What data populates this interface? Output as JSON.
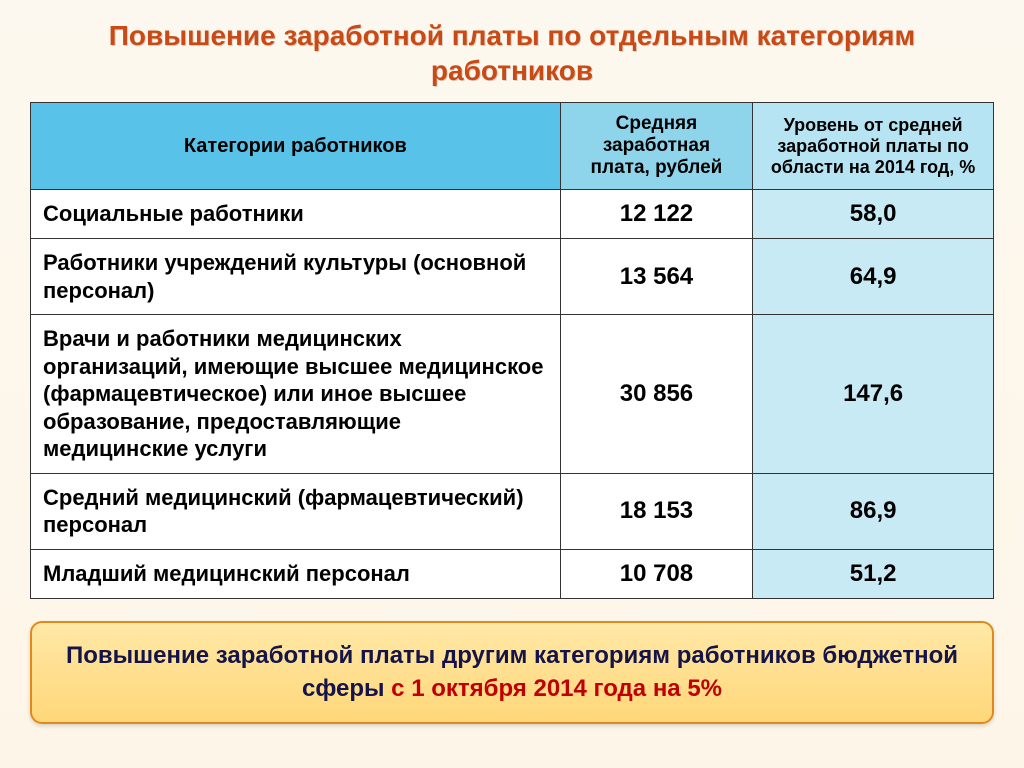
{
  "title": "Повышение заработной платы по отдельным категориям работников",
  "headers": {
    "category": "Категории работников",
    "salary": "Средняя заработная плата, рублей",
    "level": "Уровень от средней заработной платы по области на 2014 год, %"
  },
  "header_colors": {
    "category": "#59c2e8",
    "salary": "#8ed5ec",
    "level": "#b7e4f2"
  },
  "rows": [
    {
      "category": "Социальные работники",
      "salary": "12 122",
      "level": "58,0",
      "level_bg": "#c8eaf4"
    },
    {
      "category": "Работники учреждений культуры (основной персонал)",
      "salary": "13 564",
      "level": "64,9",
      "level_bg": "#c8eaf4"
    },
    {
      "category": "Врачи и работники медицинских организаций, имеющие высшее медицинское (фармацевтическое) или иное высшее образование, предоставляющие медицинские услуги",
      "salary": "30 856",
      "level": "147,6",
      "level_bg": "#c8eaf4"
    },
    {
      "category": "Средний медицинский (фармацевтический) персонал",
      "salary": "18 153",
      "level": "86,9",
      "level_bg": "#c8eaf4"
    },
    {
      "category": "Младший медицинский персонал",
      "salary": "10 708",
      "level": "51,2",
      "level_bg": "#c8eaf4"
    }
  ],
  "callout": {
    "prefix": "Повышение заработной платы другим категориям работников бюджетной сферы ",
    "date_prefix": "с  1 октября   2014 года ",
    "rate": "на 5%"
  }
}
